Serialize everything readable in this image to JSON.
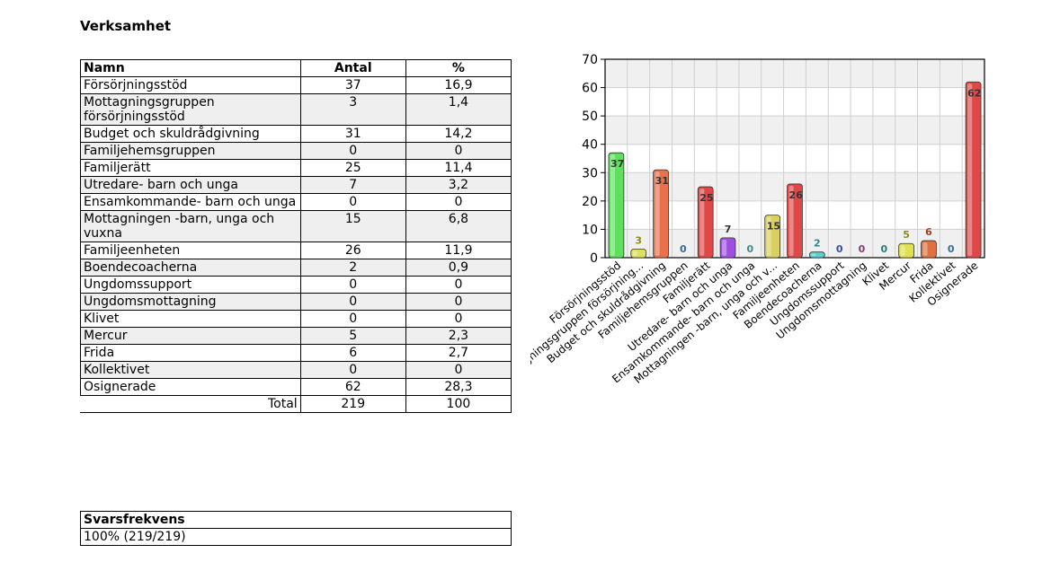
{
  "section_title": "Verksamhet",
  "table": {
    "headers": {
      "name": "Namn",
      "count": "Antal",
      "percent": "%"
    },
    "rows": [
      {
        "name": "Försörjningsstöd",
        "count": "37",
        "percent": "16,9"
      },
      {
        "name": "Mottagningsgruppen försörjningsstöd",
        "count": "3",
        "percent": "1,4"
      },
      {
        "name": "Budget och skuldrådgivning",
        "count": "31",
        "percent": "14,2"
      },
      {
        "name": "Familjehemsgruppen",
        "count": "0",
        "percent": "0"
      },
      {
        "name": "Familjerätt",
        "count": "25",
        "percent": "11,4"
      },
      {
        "name": "Utredare- barn och unga",
        "count": "7",
        "percent": "3,2"
      },
      {
        "name": "Ensamkommande- barn och unga",
        "count": "0",
        "percent": "0"
      },
      {
        "name": "Mottagningen -barn, unga och vuxna",
        "count": "15",
        "percent": "6,8"
      },
      {
        "name": "Familjeenheten",
        "count": "26",
        "percent": "11,9"
      },
      {
        "name": "Boendecoacherna",
        "count": "2",
        "percent": "0,9"
      },
      {
        "name": "Ungdomssupport",
        "count": "0",
        "percent": "0"
      },
      {
        "name": "Ungdomsmottagning",
        "count": "0",
        "percent": "0"
      },
      {
        "name": "Klivet",
        "count": "0",
        "percent": "0"
      },
      {
        "name": "Mercur",
        "count": "5",
        "percent": "2,3"
      },
      {
        "name": "Frida",
        "count": "6",
        "percent": "2,7"
      },
      {
        "name": "Kollektivet",
        "count": "0",
        "percent": "0"
      },
      {
        "name": "Osignerade",
        "count": "62",
        "percent": "28,3"
      }
    ],
    "total": {
      "label": "Total",
      "count": "219",
      "percent": "100"
    }
  },
  "response_rate": {
    "header": "Svarsfrekvens",
    "value": "100% (219/219)"
  },
  "chart_data": {
    "type": "bar",
    "categories": [
      "Försörjningsstöd",
      "Mottagningsgruppen försörjning...",
      "Budget och skuldrådgivning",
      "Familjehemsgruppen",
      "Familjerätt",
      "Utredare- barn och unga",
      "Ensamkommande- barn och unga",
      "Mottagningen -barn, unga och v...",
      "Familjeenheten",
      "Boendecoacherna",
      "Ungdomssupport",
      "Ungdomsmottagning",
      "Klivet",
      "Mercur",
      "Frida",
      "Kollektivet",
      "Osignerade"
    ],
    "values": [
      37,
      3,
      31,
      0,
      25,
      7,
      0,
      15,
      26,
      2,
      0,
      0,
      0,
      5,
      6,
      0,
      62
    ],
    "ylim": [
      0,
      70
    ],
    "yticks": [
      0,
      10,
      20,
      30,
      40,
      50,
      60,
      70
    ],
    "grid": true,
    "colors": [
      "#5ee05e",
      "#e0e05e",
      "#e8704a",
      "#4a9ac8",
      "#e04848",
      "#a050e0",
      "#5ecfcf",
      "#d8d060",
      "#e04848",
      "#5ed0d0",
      "#5070c8",
      "#c05090",
      "#50a0a0",
      "#e0e050",
      "#e07040",
      "#4a80b0",
      "#e04848"
    ],
    "label_colors": [
      "#333333",
      "#8a8a20",
      "#333333",
      "#3a6a90",
      "#333333",
      "#333333",
      "#3a8a8a",
      "#333333",
      "#333333",
      "#2a8a8a",
      "#3a4a9a",
      "#8a3a6a",
      "#2a7a7a",
      "#8a8a20",
      "#a04020",
      "#3a6a90",
      "#333333"
    ]
  }
}
